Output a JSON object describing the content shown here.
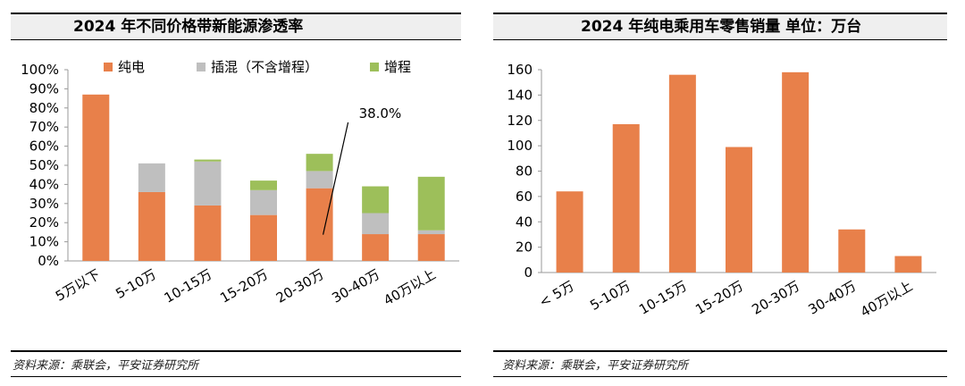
{
  "colors": {
    "bev": "#e8804a",
    "phev": "#bfbfbf",
    "erev": "#9dbf5a",
    "axis": "#9a9a9a"
  },
  "left": {
    "title": "2024 年不同价格带新能源渗透率",
    "source": "资料来源：乘联会，平安证券研究所",
    "annotation": "38.0%"
  },
  "right": {
    "title": "2024 年纯电乘用车零售销量   单位：万台",
    "source": "资料来源：乘联会，平安证券研究所"
  },
  "chart_data": [
    {
      "type": "bar",
      "stacked": true,
      "categories": [
        "5万以下",
        "5-10万",
        "10-15万",
        "15-20万",
        "20-30万",
        "30-40万",
        "40万以上"
      ],
      "series": [
        {
          "name": "纯电",
          "values": [
            87,
            36,
            29,
            24,
            38,
            14,
            14
          ]
        },
        {
          "name": "插混（不含增程）",
          "values": [
            0,
            15,
            23,
            13,
            9,
            11,
            2
          ]
        },
        {
          "name": "增程",
          "values": [
            0,
            0,
            1,
            5,
            9,
            14,
            28
          ]
        }
      ],
      "ylim": [
        0,
        100
      ],
      "yticks": [
        "0%",
        "10%",
        "20%",
        "30%",
        "40%",
        "50%",
        "60%",
        "70%",
        "80%",
        "90%",
        "100%"
      ],
      "legend": "top",
      "grid": false
    },
    {
      "type": "bar",
      "categories": [
        "< 5万",
        "5-10万",
        "10-15万",
        "15-20万",
        "20-30万",
        "30-40万",
        "40万以上"
      ],
      "values": [
        64,
        117,
        156,
        99,
        158,
        34,
        13
      ],
      "ylim": [
        0,
        160
      ],
      "yticks": [
        "0",
        "20",
        "40",
        "60",
        "80",
        "100",
        "120",
        "140",
        "160"
      ],
      "grid": false
    }
  ]
}
